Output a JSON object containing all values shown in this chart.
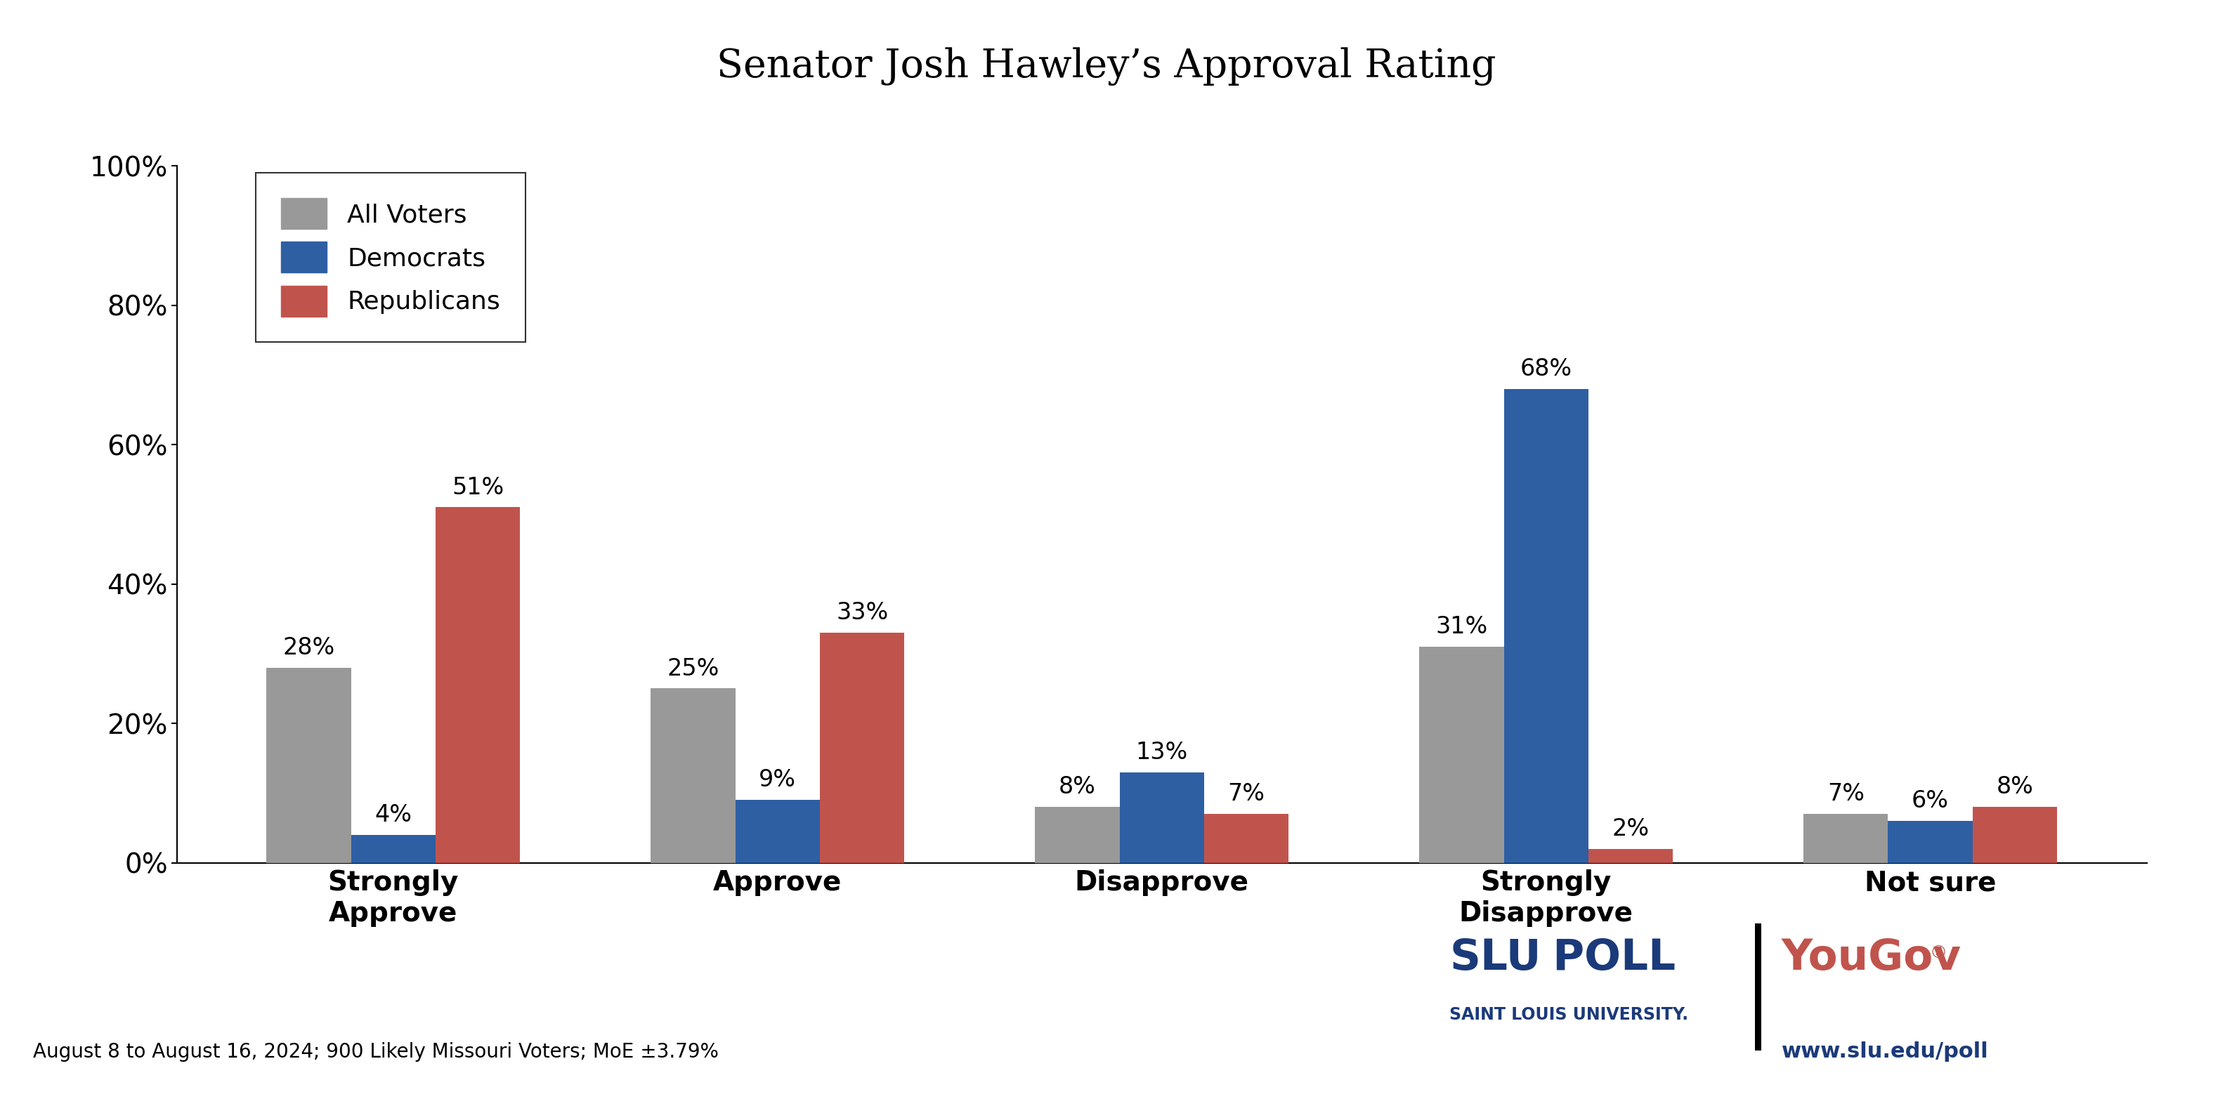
{
  "title": "Senator Josh Hawley’s Approval Rating",
  "categories": [
    "Strongly\nApprove",
    "Approve",
    "Disapprove",
    "Strongly\nDisapprove",
    "Not sure"
  ],
  "all_voters": [
    28,
    25,
    8,
    31,
    7
  ],
  "democrats": [
    4,
    9,
    13,
    68,
    6
  ],
  "republicans": [
    51,
    33,
    7,
    2,
    8
  ],
  "colors": {
    "all_voters": "#999999",
    "democrats": "#2E5FA3",
    "republicans": "#C0544D"
  },
  "ylim": [
    0,
    100
  ],
  "yticks": [
    0,
    20,
    40,
    60,
    80,
    100
  ],
  "ytick_labels": [
    "0%",
    "20%",
    "40%",
    "60%",
    "80%",
    "100%"
  ],
  "legend_labels": [
    "All Voters",
    "Democrats",
    "Republicans"
  ],
  "footer_text": "August 8 to August 16, 2024; 900 Likely Missouri Voters; MoE ±3.79%",
  "background_color": "#FFFFFF",
  "bar_width": 0.22
}
